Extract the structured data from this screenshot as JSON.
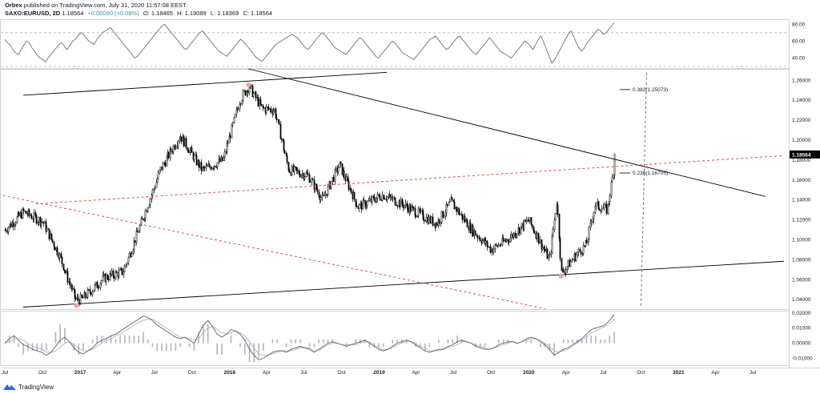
{
  "header": {
    "publisher": "Orbex",
    "published_text": "published on TradingView.com, July 31, 2020 11:57:08 EEST",
    "symbol": "SAXO:EURUSD, 2D",
    "price": "1.18564",
    "change": "+0.00090 (+0.08%)",
    "open": "O: 1.18465",
    "high": "H: 1.19089",
    "low": "L: 1.18369",
    "close": "C: 1.18564"
  },
  "footer": {
    "brand": "TradingView",
    "logo_icon": "tradingview-logo-icon"
  },
  "colors": {
    "candle": "#000000",
    "trendline": "#000000",
    "red_dashed": "#e53935",
    "fib_line": "#000000",
    "rsi_line": "#5d606b",
    "macd_line": "#5d606b",
    "signal_line": "#b2b5be",
    "hist": "#b2b5be",
    "marker": "#f7a1a1",
    "price_label_bg": "#000000"
  },
  "chart_data": [
    {
      "pane": "rsi",
      "type": "line",
      "y_ticks": [
        "80.00",
        "60.00",
        "40.00"
      ],
      "y_tick_values": [
        80,
        60,
        40
      ],
      "ylim": [
        28,
        86
      ],
      "levels": [
        70,
        30
      ],
      "values": [
        62,
        58,
        55,
        50,
        46,
        44,
        50,
        55,
        60,
        58,
        52,
        48,
        43,
        40,
        38,
        35,
        40,
        44,
        48,
        52,
        56,
        58,
        54,
        50,
        55,
        60,
        62,
        66,
        70,
        68,
        64,
        60,
        58,
        56,
        62,
        66,
        70,
        72,
        74,
        76,
        72,
        68,
        64,
        60,
        56,
        52,
        48,
        44,
        40,
        42,
        46,
        50,
        54,
        58,
        62,
        66,
        70,
        74,
        78,
        80,
        76,
        72,
        68,
        64,
        60,
        56,
        52,
        50,
        54,
        58,
        62,
        66,
        70,
        72,
        68,
        64,
        60,
        56,
        52,
        48,
        46,
        44,
        42,
        46,
        50,
        54,
        58,
        62,
        60,
        56,
        52,
        48,
        44,
        40,
        38,
        36,
        40,
        44,
        48,
        52,
        56,
        58,
        60,
        62,
        64,
        66,
        68,
        66,
        64,
        60,
        56,
        52,
        50,
        54,
        58,
        62,
        66,
        70,
        68,
        64,
        60,
        56,
        52,
        50,
        48,
        46,
        44,
        48,
        52,
        56,
        60,
        64,
        62,
        58,
        54,
        50,
        46,
        42,
        40,
        44,
        48,
        52,
        56,
        60,
        58,
        54,
        50,
        46,
        44,
        42,
        40,
        38,
        42,
        46,
        50,
        54,
        58,
        62,
        64,
        66,
        62,
        58,
        54,
        50,
        52,
        56,
        60,
        64,
        66,
        62,
        58,
        54,
        50,
        46,
        44,
        48,
        52,
        56,
        60,
        64,
        60,
        56,
        52,
        48,
        46,
        44,
        42,
        40,
        44,
        48,
        52,
        56,
        60,
        58,
        54,
        50,
        56,
        62,
        66,
        58,
        50,
        42,
        34,
        38,
        44,
        50,
        56,
        62,
        68,
        72,
        66,
        58,
        52,
        48,
        52,
        58,
        62,
        66,
        70,
        74,
        72,
        68,
        70,
        74,
        78,
        82
      ]
    },
    {
      "pane": "price",
      "type": "candlestick",
      "title": "SAXO:EURUSD, 2D",
      "last_price": "1.18564",
      "y_ticks": [
        "1.26000",
        "1.24000",
        "1.22000",
        "1.20000",
        "1.18000",
        "1.16000",
        "1.14000",
        "1.12000",
        "1.10000",
        "1.08000",
        "1.06000",
        "1.04000"
      ],
      "y_tick_values": [
        1.26,
        1.24,
        1.22,
        1.2,
        1.18,
        1.16,
        1.14,
        1.12,
        1.1,
        1.08,
        1.06,
        1.04
      ],
      "ylim": [
        1.0305,
        1.2715
      ],
      "x_tick_labels": [
        "Jul",
        "Oct",
        "2017",
        "Apr",
        "Jul",
        "Oct",
        "2018",
        "Apr",
        "Jul",
        "Oct",
        "2019",
        "Apr",
        "Jul",
        "Oct",
        "2020",
        "Apr",
        "Jul",
        "Oct",
        "2021",
        "Apr",
        "Jul"
      ],
      "anchors": [
        {
          "date": "2016-07-01",
          "close": 1.11
        },
        {
          "date": "2016-08-15",
          "close": 1.128
        },
        {
          "date": "2016-10-01",
          "close": 1.118
        },
        {
          "date": "2016-11-10",
          "close": 1.085
        },
        {
          "date": "2016-12-20",
          "close": 1.04
        },
        {
          "date": "2017-01-03",
          "close": 1.04
        },
        {
          "date": "2017-03-01",
          "close": 1.062
        },
        {
          "date": "2017-04-15",
          "close": 1.068
        },
        {
          "date": "2017-06-01",
          "close": 1.12
        },
        {
          "date": "2017-07-15",
          "close": 1.17
        },
        {
          "date": "2017-09-01",
          "close": 1.205
        },
        {
          "date": "2017-10-25",
          "close": 1.17
        },
        {
          "date": "2017-12-15",
          "close": 1.18
        },
        {
          "date": "2018-01-25",
          "close": 1.24
        },
        {
          "date": "2018-02-16",
          "close": 1.254
        },
        {
          "date": "2018-03-20",
          "close": 1.232
        },
        {
          "date": "2018-04-20",
          "close": 1.23
        },
        {
          "date": "2018-05-25",
          "close": 1.17
        },
        {
          "date": "2018-07-10",
          "close": 1.165
        },
        {
          "date": "2018-08-15",
          "close": 1.14
        },
        {
          "date": "2018-09-25",
          "close": 1.175
        },
        {
          "date": "2018-11-10",
          "close": 1.133
        },
        {
          "date": "2019-01-10",
          "close": 1.145
        },
        {
          "date": "2019-03-01",
          "close": 1.135
        },
        {
          "date": "2019-05-20",
          "close": 1.116
        },
        {
          "date": "2019-06-25",
          "close": 1.138
        },
        {
          "date": "2019-08-15",
          "close": 1.11
        },
        {
          "date": "2019-10-01",
          "close": 1.09
        },
        {
          "date": "2019-11-15",
          "close": 1.102
        },
        {
          "date": "2019-12-31",
          "close": 1.12
        },
        {
          "date": "2020-02-20",
          "close": 1.08
        },
        {
          "date": "2020-03-09",
          "close": 1.14
        },
        {
          "date": "2020-03-20",
          "close": 1.066
        },
        {
          "date": "2020-04-25",
          "close": 1.085
        },
        {
          "date": "2020-05-20",
          "close": 1.095
        },
        {
          "date": "2020-06-10",
          "close": 1.135
        },
        {
          "date": "2020-07-10",
          "close": 1.13
        },
        {
          "date": "2020-07-22",
          "close": 1.16
        },
        {
          "date": "2020-07-31",
          "close": 1.18564
        }
      ],
      "markers": [
        {
          "date": "2018-02-16",
          "price": 1.2556
        },
        {
          "date": "2016-12-23",
          "price": 1.034
        },
        {
          "date": "2020-03-20",
          "price": 1.0636
        }
      ],
      "trendlines": [
        {
          "style": "solid",
          "p1": {
            "date": "2016-08-15",
            "price": 1.245
          },
          "p2": {
            "date": "2019-01-20",
            "price": 1.268
          }
        },
        {
          "style": "solid",
          "p1": {
            "date": "2018-02-16",
            "price": 1.2715
          },
          "p2": {
            "date": "2021-08-01",
            "price": 1.1435
          }
        },
        {
          "style": "solid",
          "p1": {
            "date": "2016-08-15",
            "price": 1.0325
          },
          "p2": {
            "date": "2021-09-15",
            "price": 1.0785
          }
        },
        {
          "style": "red-dashed",
          "p1": {
            "date": "2016-06-15",
            "price": 1.1455
          },
          "p2": {
            "date": "2020-02-10",
            "price": 1.031
          }
        },
        {
          "style": "red-dashed",
          "p1": {
            "date": "2016-09-15",
            "price": 1.136
          },
          "p2": {
            "date": "2021-09-15",
            "price": 1.1845
          }
        },
        {
          "style": "gray-dashed",
          "p1": {
            "date": "2020-10-01",
            "price": 1.034
          },
          "p2": {
            "date": "2020-10-15",
            "price": 1.2695
          }
        }
      ],
      "fibonacci": [
        {
          "label": "0.382(1.25073)",
          "price": 1.25073,
          "from": "2020-08-10",
          "to": "2020-09-05"
        },
        {
          "label": "0.236(1.16705)",
          "price": 1.16705,
          "from": "2020-08-10",
          "to": "2020-09-05"
        }
      ]
    },
    {
      "pane": "macd",
      "type": "line",
      "y_ticks": [
        "0.02000",
        "0.01000",
        "0.00000",
        "-0.01000"
      ],
      "y_tick_values": [
        0.02,
        0.01,
        0.0,
        -0.01
      ],
      "ylim": [
        -0.0145,
        0.0215
      ],
      "macd": [
        0.0,
        0.003,
        0.005,
        0.002,
        -0.001,
        -0.002,
        -0.004,
        -0.005,
        -0.006,
        -0.008,
        -0.006,
        -0.002,
        0.002,
        0.004,
        0.001,
        -0.003,
        -0.006,
        -0.007,
        -0.005,
        -0.003,
        0.0,
        0.002,
        0.003,
        0.005,
        0.006,
        0.008,
        0.01,
        0.012,
        0.014,
        0.016,
        0.018,
        0.017,
        0.015,
        0.012,
        0.01,
        0.008,
        0.006,
        0.004,
        0.003,
        0.004,
        0.002,
        0.0,
        0.006,
        0.012,
        0.015,
        0.011,
        0.006,
        0.004,
        0.006,
        0.009,
        0.008,
        0.006,
        0.002,
        -0.004,
        -0.008,
        -0.011,
        -0.01,
        -0.008,
        -0.006,
        -0.005,
        -0.005,
        -0.006,
        -0.004,
        -0.003,
        -0.002,
        -0.003,
        -0.004,
        -0.006,
        -0.004,
        -0.002,
        0.0,
        0.001,
        0.0,
        -0.001,
        -0.002,
        -0.001,
        0.0,
        0.001,
        0.002,
        0.0,
        -0.002,
        -0.004,
        -0.005,
        -0.004,
        -0.002,
        0.0,
        0.001,
        0.002,
        0.001,
        -0.001,
        -0.003,
        -0.005,
        -0.006,
        -0.005,
        -0.004,
        -0.004,
        -0.002,
        -0.001,
        0.001,
        0.002,
        0.001,
        0.0,
        -0.002,
        -0.003,
        -0.004,
        -0.004,
        -0.003,
        -0.001,
        0.0,
        0.001,
        0.001,
        0.0,
        0.001,
        0.003,
        0.004,
        0.003,
        0.001,
        -0.001,
        -0.004,
        -0.008,
        -0.006,
        -0.004,
        -0.003,
        -0.001,
        0.001,
        0.003,
        0.006,
        0.009,
        0.01,
        0.011,
        0.012,
        0.015,
        0.019
      ],
      "signal": [
        0.0,
        0.001,
        0.003,
        0.003,
        0.002,
        0.0,
        -0.002,
        -0.003,
        -0.004,
        -0.006,
        -0.006,
        -0.005,
        -0.003,
        0.0,
        0.001,
        -0.001,
        -0.003,
        -0.005,
        -0.005,
        -0.004,
        -0.002,
        0.0,
        0.002,
        0.003,
        0.005,
        0.006,
        0.008,
        0.01,
        0.012,
        0.014,
        0.015,
        0.016,
        0.016,
        0.014,
        0.012,
        0.01,
        0.008,
        0.006,
        0.004,
        0.004,
        0.003,
        0.002,
        0.003,
        0.007,
        0.01,
        0.011,
        0.009,
        0.007,
        0.006,
        0.007,
        0.008,
        0.007,
        0.005,
        0.001,
        -0.003,
        -0.007,
        -0.008,
        -0.008,
        -0.007,
        -0.006,
        -0.005,
        -0.005,
        -0.005,
        -0.004,
        -0.003,
        -0.003,
        -0.003,
        -0.005,
        -0.005,
        -0.003,
        -0.001,
        0.0,
        0.0,
        -0.001,
        -0.001,
        -0.001,
        -0.001,
        0.0,
        0.001,
        0.001,
        -0.001,
        -0.003,
        -0.004,
        -0.004,
        -0.003,
        -0.001,
        0.0,
        0.001,
        0.001,
        0.0,
        -0.002,
        -0.003,
        -0.005,
        -0.005,
        -0.005,
        -0.004,
        -0.003,
        -0.002,
        -0.001,
        0.001,
        0.001,
        0.0,
        -0.001,
        -0.002,
        -0.003,
        -0.004,
        -0.003,
        -0.002,
        -0.001,
        0.0,
        0.001,
        0.0,
        0.001,
        0.002,
        0.003,
        0.003,
        0.002,
        0.0,
        -0.002,
        -0.005,
        -0.006,
        -0.005,
        -0.004,
        -0.002,
        0.0,
        0.002,
        0.004,
        0.007,
        0.008,
        0.01,
        0.011,
        0.013,
        0.016
      ]
    }
  ]
}
